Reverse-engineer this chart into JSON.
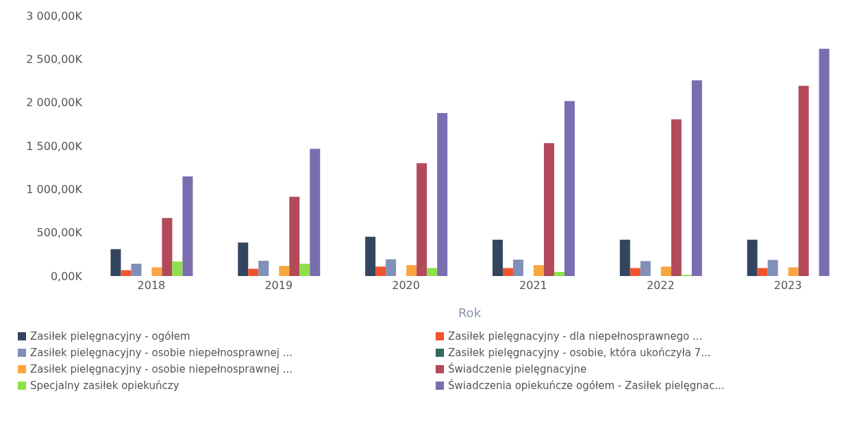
{
  "chart_data": {
    "type": "bar",
    "xlabel": "Rok",
    "categories": [
      "2018",
      "2019",
      "2020",
      "2021",
      "2022",
      "2023"
    ],
    "series": [
      {
        "name": "Zasiłek pielęgnacyjny - ogółem",
        "color": "#34465f",
        "values": [
          310,
          386,
          453,
          419,
          419,
          419
        ]
      },
      {
        "name": "Zasiłek pielęgnacyjny - dla niepełnosprawnego ...",
        "color": "#f0542e",
        "values": [
          67,
          84,
          109,
          92,
          92,
          92
        ]
      },
      {
        "name": "Zasiłek pielęgnacyjny - osobie niepełnosprawnej ...",
        "color": "#8090b8",
        "values": [
          142,
          176,
          193,
          189,
          172,
          186
        ]
      },
      {
        "name": "Zasiłek pielęgnacyjny - osobie, która ukończyła 7...",
        "color": "#2f6b62",
        "values": [
          null,
          null,
          null,
          null,
          null,
          null
        ]
      },
      {
        "name": "Zasiłek pielęgnacyjny -  osobie niepełnosprawnej ...",
        "color": "#f9a640",
        "values": [
          100,
          117,
          126,
          126,
          109,
          101
        ]
      },
      {
        "name": "Świadczenie pielęgnacyjne",
        "color": "#b24a5a",
        "values": [
          670,
          914,
          1300,
          1531,
          1805,
          2192
        ]
      },
      {
        "name": "Specjalny zasiłek opiekuńczy",
        "color": "#8fe04a",
        "values": [
          168,
          142,
          92,
          48,
          14,
          null
        ]
      },
      {
        "name": "Świadczenia opiekuńcze ogółem - Zasiłek pielęgnac...",
        "color": "#7a6db0",
        "values": [
          1148,
          1467,
          1878,
          2017,
          2256,
          2620
        ]
      }
    ],
    "ylim": [
      0,
      3000
    ],
    "yticks": [
      {
        "value": 0,
        "label": "0,00K"
      },
      {
        "value": 500,
        "label": "500,00K"
      },
      {
        "value": 1000,
        "label": "1 000,00K"
      },
      {
        "value": 1500,
        "label": "1 500,00K"
      },
      {
        "value": 2000,
        "label": "2 000,00K"
      },
      {
        "value": 2500,
        "label": "2 500,00K"
      },
      {
        "value": 3000,
        "label": "3 000,00K"
      }
    ],
    "legend": "bottom"
  }
}
